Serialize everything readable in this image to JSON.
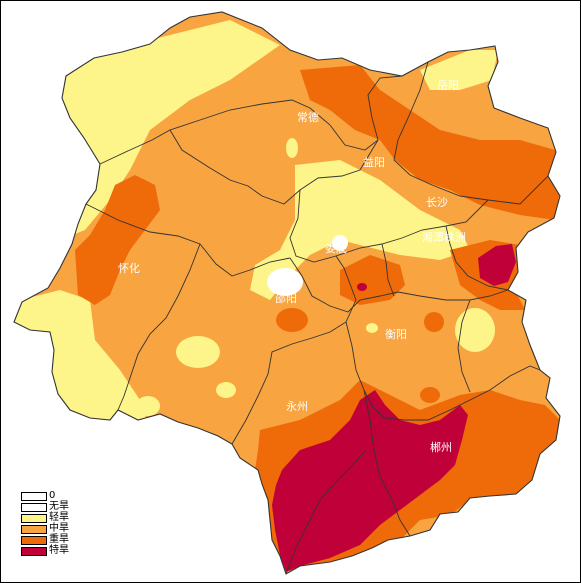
{
  "legend": {
    "items": [
      {
        "label": "0",
        "color": "#ffffff"
      },
      {
        "label": "无旱",
        "color": "#ffffff"
      },
      {
        "label": "轻旱",
        "color": "#fdf589"
      },
      {
        "label": "中旱",
        "color": "#f7a441"
      },
      {
        "label": "重旱",
        "color": "#ef6a08"
      },
      {
        "label": "特旱",
        "color": "#c00038"
      }
    ]
  },
  "cities": {
    "changde": "常德",
    "yueyang": "岳阳",
    "yiyang": "益阳",
    "changsha": "长沙",
    "loudi": "娄底",
    "xiangtan": "湘潭株洲",
    "huaihua": "怀化",
    "shaoyang": "邵阳",
    "hengyang": "衡阳",
    "yongzhou": "永州",
    "chenzhou": "郴州"
  },
  "colors": {
    "light_drought": "#fdf589",
    "moderate_drought": "#f7a441",
    "severe_drought": "#ef6a08",
    "extreme_drought": "#c00038",
    "border": "#333333"
  }
}
